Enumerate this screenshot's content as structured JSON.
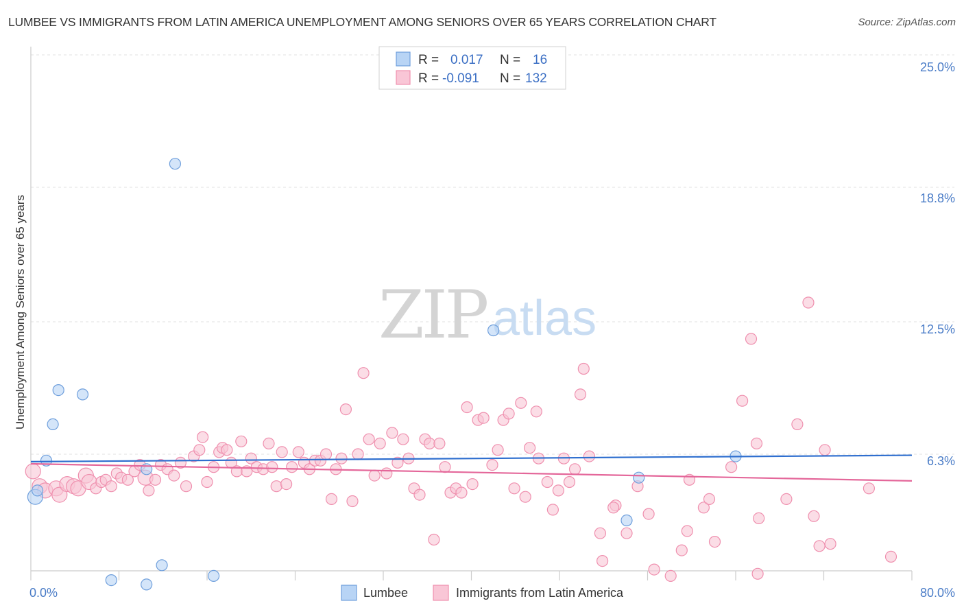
{
  "header": {
    "title": "LUMBEE VS IMMIGRANTS FROM LATIN AMERICA UNEMPLOYMENT AMONG SENIORS OVER 65 YEARS CORRELATION CHART",
    "source": "Source: ZipAtlas.com"
  },
  "watermark": {
    "part1": "ZIP",
    "part2": "atlas"
  },
  "stats": {
    "r_label": "R =",
    "n_label": "N =",
    "rows": [
      {
        "r": "0.017",
        "n": "16"
      },
      {
        "r": "-0.091",
        "n": "132"
      }
    ]
  },
  "colors": {
    "lumbee_fill": "#b8d4f5",
    "lumbee_stroke": "#6f9fdc",
    "lumbee_line": "#2f6fcf",
    "latin_fill": "#f9c6d6",
    "latin_stroke": "#ef8fae",
    "latin_line": "#e4679a"
  },
  "chart_data": {
    "type": "scatter",
    "title": "LUMBEE VS IMMIGRANTS FROM LATIN AMERICA UNEMPLOYMENT AMONG SENIORS OVER 65 YEARS CORRELATION CHART",
    "xlabel": "",
    "ylabel": "Unemployment Among Seniors over 65 years",
    "xlim": [
      0,
      80
    ],
    "ylim": [
      0,
      26
    ],
    "x_tick_labels": [
      "0.0%",
      "80.0%"
    ],
    "y_ticks": [
      6.3,
      12.5,
      18.8,
      25.0
    ],
    "y_tick_labels": [
      "6.3%",
      "12.5%",
      "18.8%",
      "25.0%"
    ],
    "grid": true,
    "legend_position": "bottom-center",
    "series": [
      {
        "name": "Lumbee",
        "r": 0.017,
        "n": 16,
        "trend": {
          "x": [
            0,
            80
          ],
          "y": [
            5.95,
            6.25
          ]
        },
        "points": [
          {
            "x": 0.4,
            "y": 4.3,
            "s": "big"
          },
          {
            "x": 0.6,
            "y": 4.6,
            "s": "m"
          },
          {
            "x": 1.4,
            "y": 6.0,
            "s": "m"
          },
          {
            "x": 2.0,
            "y": 7.7,
            "s": "m"
          },
          {
            "x": 2.5,
            "y": 9.3,
            "s": "m"
          },
          {
            "x": 4.7,
            "y": 9.1,
            "s": "m"
          },
          {
            "x": 7.3,
            "y": 0.4,
            "s": "m"
          },
          {
            "x": 10.5,
            "y": 0.2,
            "s": "m"
          },
          {
            "x": 11.9,
            "y": 1.1,
            "s": "m"
          },
          {
            "x": 10.5,
            "y": 5.6,
            "s": "m"
          },
          {
            "x": 13.1,
            "y": 19.9,
            "s": "m"
          },
          {
            "x": 16.6,
            "y": 0.6,
            "s": "m"
          },
          {
            "x": 42.0,
            "y": 12.1,
            "s": "m"
          },
          {
            "x": 55.2,
            "y": 5.2,
            "s": "m"
          },
          {
            "x": 54.1,
            "y": 3.2,
            "s": "m"
          },
          {
            "x": 64.0,
            "y": 6.2,
            "s": "m"
          }
        ]
      },
      {
        "name": "Immigrants from Latin America",
        "r": -0.091,
        "n": 132,
        "trend": {
          "x": [
            0,
            80
          ],
          "y": [
            5.85,
            5.05
          ]
        },
        "points": [
          {
            "x": 0.2,
            "y": 5.5,
            "s": "big"
          },
          {
            "x": 0.8,
            "y": 4.8,
            "s": "big"
          },
          {
            "x": 1.3,
            "y": 4.6,
            "s": "big"
          },
          {
            "x": 2.3,
            "y": 4.7,
            "s": "big"
          },
          {
            "x": 2.6,
            "y": 4.4,
            "s": "big"
          },
          {
            "x": 3.3,
            "y": 4.9,
            "s": "big"
          },
          {
            "x": 3.9,
            "y": 4.8,
            "s": "big"
          },
          {
            "x": 4.3,
            "y": 4.7,
            "s": "big"
          },
          {
            "x": 5.0,
            "y": 5.3,
            "s": "big"
          },
          {
            "x": 5.3,
            "y": 5.0,
            "s": "big"
          },
          {
            "x": 5.9,
            "y": 4.7,
            "s": "m"
          },
          {
            "x": 6.4,
            "y": 5.0,
            "s": "m"
          },
          {
            "x": 6.8,
            "y": 5.1,
            "s": "m"
          },
          {
            "x": 7.3,
            "y": 4.8,
            "s": "m"
          },
          {
            "x": 7.8,
            "y": 5.4,
            "s": "m"
          },
          {
            "x": 8.2,
            "y": 5.2,
            "s": "m"
          },
          {
            "x": 8.8,
            "y": 5.1,
            "s": "m"
          },
          {
            "x": 9.4,
            "y": 5.5,
            "s": "m"
          },
          {
            "x": 9.9,
            "y": 5.8,
            "s": "m"
          },
          {
            "x": 10.4,
            "y": 5.2,
            "s": "big"
          },
          {
            "x": 10.7,
            "y": 4.6,
            "s": "m"
          },
          {
            "x": 11.3,
            "y": 5.1,
            "s": "m"
          },
          {
            "x": 11.8,
            "y": 5.8,
            "s": "m"
          },
          {
            "x": 12.4,
            "y": 5.6,
            "s": "m"
          },
          {
            "x": 13.0,
            "y": 5.3,
            "s": "m"
          },
          {
            "x": 13.6,
            "y": 5.9,
            "s": "m"
          },
          {
            "x": 14.1,
            "y": 4.8,
            "s": "m"
          },
          {
            "x": 14.8,
            "y": 6.2,
            "s": "m"
          },
          {
            "x": 15.3,
            "y": 6.5,
            "s": "m"
          },
          {
            "x": 15.6,
            "y": 7.1,
            "s": "m"
          },
          {
            "x": 16.0,
            "y": 5.0,
            "s": "m"
          },
          {
            "x": 16.6,
            "y": 5.7,
            "s": "m"
          },
          {
            "x": 17.1,
            "y": 6.4,
            "s": "m"
          },
          {
            "x": 17.4,
            "y": 6.6,
            "s": "m"
          },
          {
            "x": 17.8,
            "y": 6.5,
            "s": "m"
          },
          {
            "x": 18.2,
            "y": 5.9,
            "s": "m"
          },
          {
            "x": 18.7,
            "y": 5.5,
            "s": "m"
          },
          {
            "x": 19.1,
            "y": 6.9,
            "s": "m"
          },
          {
            "x": 19.6,
            "y": 5.5,
            "s": "m"
          },
          {
            "x": 20.0,
            "y": 6.1,
            "s": "m"
          },
          {
            "x": 20.5,
            "y": 5.7,
            "s": "m"
          },
          {
            "x": 21.1,
            "y": 5.6,
            "s": "m"
          },
          {
            "x": 21.6,
            "y": 6.8,
            "s": "m"
          },
          {
            "x": 21.9,
            "y": 5.7,
            "s": "m"
          },
          {
            "x": 22.3,
            "y": 4.8,
            "s": "m"
          },
          {
            "x": 22.8,
            "y": 6.4,
            "s": "m"
          },
          {
            "x": 23.2,
            "y": 4.9,
            "s": "m"
          },
          {
            "x": 23.7,
            "y": 5.7,
            "s": "m"
          },
          {
            "x": 24.3,
            "y": 6.4,
            "s": "m"
          },
          {
            "x": 24.8,
            "y": 5.9,
            "s": "m"
          },
          {
            "x": 25.3,
            "y": 5.6,
            "s": "m"
          },
          {
            "x": 25.8,
            "y": 6.0,
            "s": "m"
          },
          {
            "x": 26.3,
            "y": 6.0,
            "s": "m"
          },
          {
            "x": 26.8,
            "y": 6.3,
            "s": "m"
          },
          {
            "x": 27.3,
            "y": 4.2,
            "s": "m"
          },
          {
            "x": 27.7,
            "y": 5.6,
            "s": "m"
          },
          {
            "x": 28.2,
            "y": 6.1,
            "s": "m"
          },
          {
            "x": 28.6,
            "y": 8.4,
            "s": "m"
          },
          {
            "x": 29.2,
            "y": 4.1,
            "s": "m"
          },
          {
            "x": 29.7,
            "y": 6.3,
            "s": "m"
          },
          {
            "x": 30.2,
            "y": 10.1,
            "s": "m"
          },
          {
            "x": 30.7,
            "y": 7.0,
            "s": "m"
          },
          {
            "x": 31.2,
            "y": 5.3,
            "s": "m"
          },
          {
            "x": 31.7,
            "y": 6.8,
            "s": "m"
          },
          {
            "x": 32.3,
            "y": 5.4,
            "s": "m"
          },
          {
            "x": 32.8,
            "y": 7.3,
            "s": "m"
          },
          {
            "x": 33.3,
            "y": 5.9,
            "s": "m"
          },
          {
            "x": 33.8,
            "y": 7.0,
            "s": "m"
          },
          {
            "x": 34.3,
            "y": 6.1,
            "s": "m"
          },
          {
            "x": 34.8,
            "y": 4.7,
            "s": "m"
          },
          {
            "x": 35.3,
            "y": 4.4,
            "s": "m"
          },
          {
            "x": 35.8,
            "y": 7.0,
            "s": "m"
          },
          {
            "x": 36.2,
            "y": 6.8,
            "s": "m"
          },
          {
            "x": 36.6,
            "y": 2.3,
            "s": "m"
          },
          {
            "x": 37.1,
            "y": 6.8,
            "s": "m"
          },
          {
            "x": 37.6,
            "y": 5.7,
            "s": "m"
          },
          {
            "x": 38.1,
            "y": 4.5,
            "s": "m"
          },
          {
            "x": 38.6,
            "y": 4.7,
            "s": "m"
          },
          {
            "x": 39.1,
            "y": 4.5,
            "s": "m"
          },
          {
            "x": 39.6,
            "y": 8.5,
            "s": "m"
          },
          {
            "x": 40.1,
            "y": 4.9,
            "s": "m"
          },
          {
            "x": 40.6,
            "y": 7.9,
            "s": "m"
          },
          {
            "x": 41.1,
            "y": 8.0,
            "s": "m"
          },
          {
            "x": 41.9,
            "y": 5.8,
            "s": "m"
          },
          {
            "x": 42.4,
            "y": 6.5,
            "s": "m"
          },
          {
            "x": 42.9,
            "y": 7.9,
            "s": "m"
          },
          {
            "x": 43.4,
            "y": 8.2,
            "s": "m"
          },
          {
            "x": 43.9,
            "y": 4.7,
            "s": "m"
          },
          {
            "x": 44.5,
            "y": 8.7,
            "s": "m"
          },
          {
            "x": 44.9,
            "y": 4.3,
            "s": "m"
          },
          {
            "x": 45.3,
            "y": 6.6,
            "s": "m"
          },
          {
            "x": 45.9,
            "y": 8.3,
            "s": "m"
          },
          {
            "x": 46.1,
            "y": 6.1,
            "s": "m"
          },
          {
            "x": 46.9,
            "y": 5.0,
            "s": "m"
          },
          {
            "x": 47.4,
            "y": 3.7,
            "s": "m"
          },
          {
            "x": 47.9,
            "y": 4.6,
            "s": "m"
          },
          {
            "x": 48.4,
            "y": 6.1,
            "s": "m"
          },
          {
            "x": 48.9,
            "y": 5.0,
            "s": "m"
          },
          {
            "x": 49.4,
            "y": 5.6,
            "s": "m"
          },
          {
            "x": 49.9,
            "y": 9.1,
            "s": "m"
          },
          {
            "x": 50.2,
            "y": 10.3,
            "s": "m"
          },
          {
            "x": 50.7,
            "y": 6.2,
            "s": "m"
          },
          {
            "x": 51.7,
            "y": 2.6,
            "s": "m"
          },
          {
            "x": 51.9,
            "y": 1.3,
            "s": "m"
          },
          {
            "x": 53.1,
            "y": 3.9,
            "s": "m"
          },
          {
            "x": 52.9,
            "y": 3.8,
            "s": "m"
          },
          {
            "x": 54.1,
            "y": 2.6,
            "s": "m"
          },
          {
            "x": 55.1,
            "y": 4.8,
            "s": "m"
          },
          {
            "x": 56.1,
            "y": 3.5,
            "s": "m"
          },
          {
            "x": 56.6,
            "y": 0.9,
            "s": "m"
          },
          {
            "x": 58.1,
            "y": 0.6,
            "s": "m"
          },
          {
            "x": 59.1,
            "y": 1.8,
            "s": "m"
          },
          {
            "x": 59.6,
            "y": 2.7,
            "s": "m"
          },
          {
            "x": 59.8,
            "y": 5.1,
            "s": "m"
          },
          {
            "x": 61.1,
            "y": 3.8,
            "s": "m"
          },
          {
            "x": 61.6,
            "y": 4.2,
            "s": "m"
          },
          {
            "x": 62.1,
            "y": 2.2,
            "s": "m"
          },
          {
            "x": 63.6,
            "y": 5.7,
            "s": "m"
          },
          {
            "x": 64.6,
            "y": 8.8,
            "s": "m"
          },
          {
            "x": 65.4,
            "y": 11.7,
            "s": "m"
          },
          {
            "x": 66.1,
            "y": 3.3,
            "s": "m"
          },
          {
            "x": 66.0,
            "y": 0.7,
            "s": "m"
          },
          {
            "x": 65.9,
            "y": 6.8,
            "s": "m"
          },
          {
            "x": 68.6,
            "y": 4.2,
            "s": "m"
          },
          {
            "x": 69.6,
            "y": 7.7,
            "s": "m"
          },
          {
            "x": 70.6,
            "y": 13.4,
            "s": "m"
          },
          {
            "x": 71.1,
            "y": 3.4,
            "s": "m"
          },
          {
            "x": 71.6,
            "y": 2.0,
            "s": "m"
          },
          {
            "x": 72.1,
            "y": 6.5,
            "s": "m"
          },
          {
            "x": 72.6,
            "y": 2.1,
            "s": "m"
          },
          {
            "x": 76.1,
            "y": 4.7,
            "s": "m"
          },
          {
            "x": 78.1,
            "y": 1.5,
            "s": "m"
          }
        ]
      }
    ]
  },
  "axes": {
    "ylabel": "Unemployment Among Seniors over 65 years",
    "x_left": "0.0%",
    "x_right": "80.0%",
    "y_labels": [
      "6.3%",
      "12.5%",
      "18.8%",
      "25.0%"
    ]
  },
  "legend": {
    "items": [
      {
        "label": "Lumbee"
      },
      {
        "label": "Immigrants from Latin America"
      }
    ]
  }
}
